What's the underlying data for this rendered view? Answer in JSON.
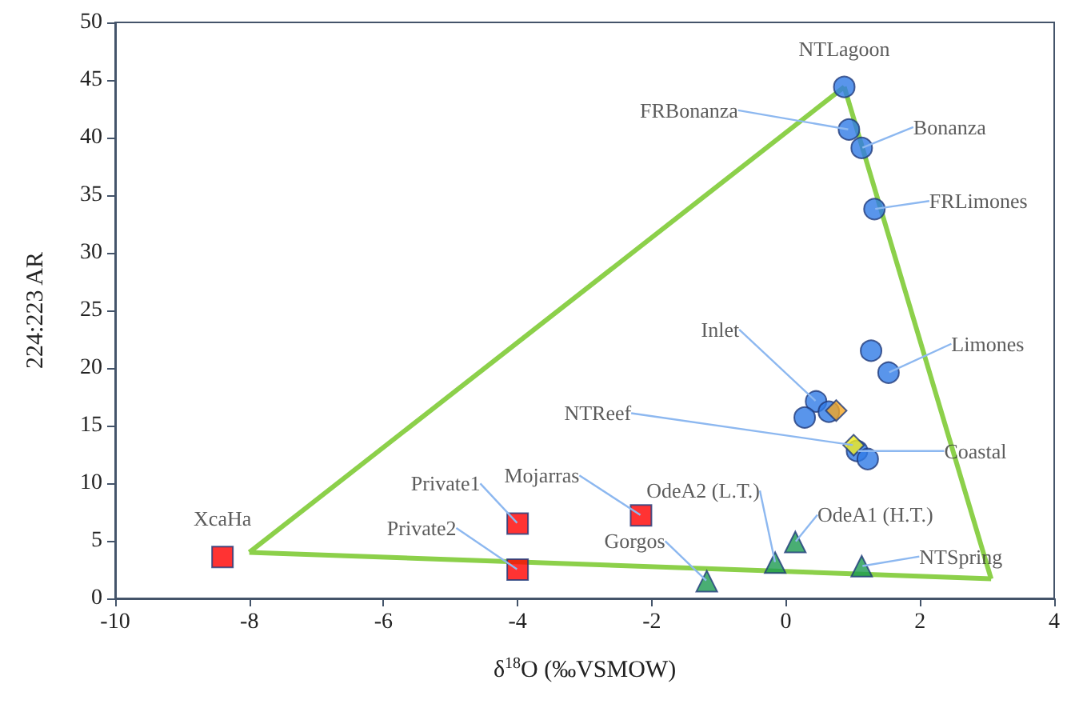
{
  "chart_data": {
    "type": "scatter",
    "xlabel": "δ$^{18}$O (‰VSMOW)",
    "ylabel": "224:223 AR",
    "xlim": [
      -10,
      4
    ],
    "xticks": [
      -10,
      -8,
      -6,
      -4,
      -2,
      0,
      2,
      4
    ],
    "ylim": [
      0,
      50
    ],
    "yticks": [
      0,
      5,
      10,
      15,
      20,
      25,
      30,
      35,
      40,
      45,
      50
    ],
    "grid": false,
    "series": [
      {
        "type": "line",
        "color": "#8cd04a",
        "marker": "none",
        "line_style": "solid",
        "x": [
          -8.0,
          0.87
        ],
        "values": [
          4.0,
          44.4
        ]
      },
      {
        "type": "line",
        "color": "#8cd04a",
        "marker": "none",
        "line_style": "solid",
        "x": [
          0.87,
          3.06
        ],
        "values": [
          44.4,
          1.7
        ]
      },
      {
        "type": "line",
        "color": "#8cd04a",
        "marker": "none",
        "line_style": "solid",
        "x": [
          -8.0,
          3.06
        ],
        "values": [
          4.0,
          1.7
        ]
      },
      {
        "color": "#2f7be6",
        "marker": "circle",
        "x": [
          0.87,
          0.94,
          1.13,
          1.32,
          1.27,
          1.53,
          0.45,
          0.28,
          0.64,
          1.06,
          1.22
        ],
        "values": [
          44.4,
          40.7,
          39.1,
          33.8,
          21.5,
          19.6,
          17.1,
          15.7,
          16.2,
          12.8,
          12.1
        ]
      },
      {
        "color": "#f5a623",
        "marker": "diamond",
        "x": [
          0.75
        ],
        "values": [
          16.3
        ]
      },
      {
        "color": "#f2ec1e",
        "marker": "diamond",
        "x": [
          1.01
        ],
        "values": [
          13.3
        ]
      },
      {
        "color": "#1b9a50",
        "marker": "triangle",
        "x": [
          -1.18,
          -0.16,
          0.14,
          1.13
        ],
        "values": [
          1.5,
          3.1,
          4.9,
          2.8
        ]
      },
      {
        "color": "#ff0000",
        "marker": "square",
        "x": [
          -8.4,
          -4.0,
          -4.0,
          -2.16
        ],
        "values": [
          3.6,
          6.5,
          2.5,
          7.2
        ]
      }
    ],
    "annotations": [
      {
        "text": "NTLagoon",
        "x": 0.87,
        "y": 44.4
      },
      {
        "text": "FRBonanza",
        "x": 0.94,
        "y": 40.7
      },
      {
        "text": "Bonanza",
        "x": 1.13,
        "y": 39.1
      },
      {
        "text": "FRLimones",
        "x": 1.32,
        "y": 33.8
      },
      {
        "text": "Limones",
        "x": 1.53,
        "y": 19.6
      },
      {
        "text": "Inlet",
        "x": 0.45,
        "y": 17.1
      },
      {
        "text": "NTReef",
        "x": 1.01,
        "y": 13.3
      },
      {
        "text": "Coastal",
        "x": 1.06,
        "y": 12.8
      },
      {
        "text": "Mojarras",
        "x": -2.16,
        "y": 7.2
      },
      {
        "text": "OdeA2 (L.T.)",
        "x": -0.16,
        "y": 3.1
      },
      {
        "text": "OdeA1 (H.T.)",
        "x": 0.14,
        "y": 4.9
      },
      {
        "text": "NTSpring",
        "x": 1.13,
        "y": 2.8
      },
      {
        "text": "Gorgos",
        "x": -1.18,
        "y": 1.5
      },
      {
        "text": "Private1",
        "x": -4.0,
        "y": 6.5
      },
      {
        "text": "Private2",
        "x": -4.0,
        "y": 2.5
      },
      {
        "text": "XcaHa",
        "x": -8.4,
        "y": 3.6
      }
    ]
  }
}
